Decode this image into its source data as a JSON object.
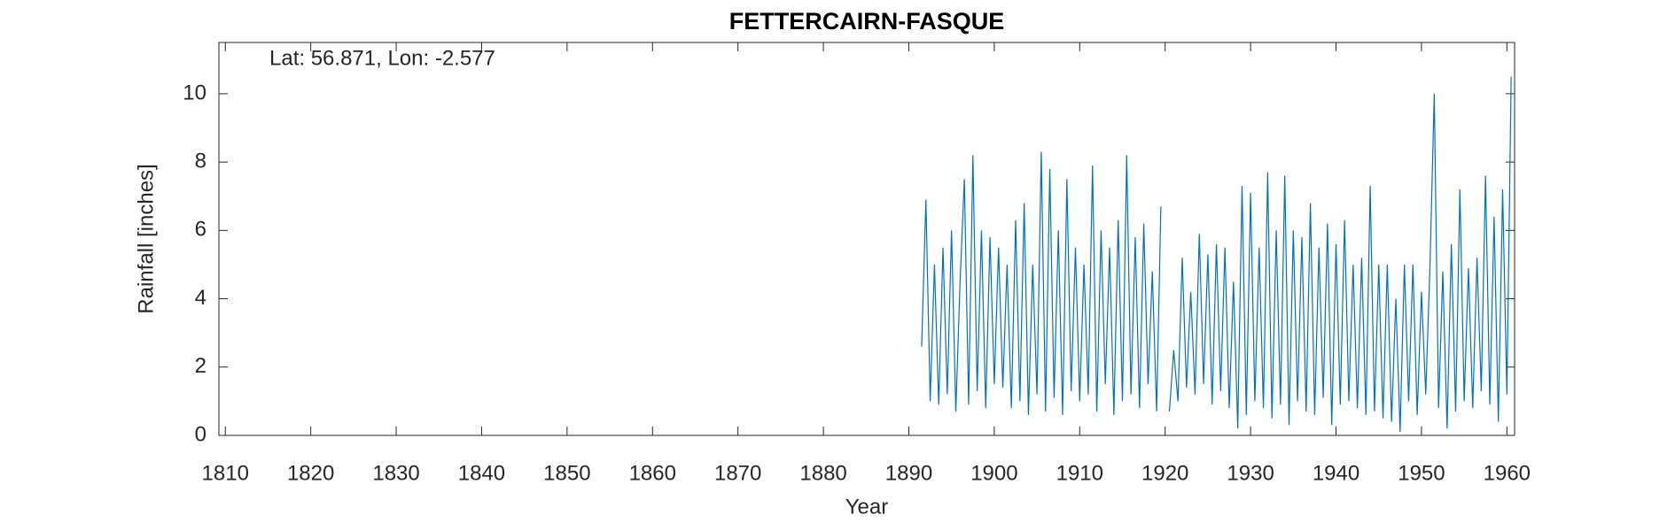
{
  "chart_data": {
    "type": "line",
    "title": "FETTERCAIRN-FASQUE",
    "annotation": "Lat: 56.871, Lon: -2.577",
    "xlabel": "Year",
    "ylabel": "Rainfall [inches]",
    "x": [
      1891.5,
      1892,
      1892.5,
      1893,
      1893.5,
      1894,
      1894.5,
      1895,
      1895.5,
      1896,
      1896.5,
      1897,
      1897.5,
      1898,
      1898.5,
      1899,
      1899.5,
      1900,
      1900.5,
      1901,
      1901.5,
      1902,
      1902.5,
      1903,
      1903.5,
      1904,
      1904.5,
      1905,
      1905.5,
      1906,
      1906.5,
      1907,
      1907.5,
      1908,
      1908.5,
      1909,
      1909.5,
      1910,
      1910.5,
      1911,
      1911.5,
      1912,
      1912.5,
      1913,
      1913.5,
      1914,
      1914.5,
      1915,
      1915.5,
      1916,
      1916.5,
      1917,
      1917.5,
      1918,
      1918.5,
      1919,
      1919.5,
      1920,
      1920.5,
      1921,
      1921.5,
      1922,
      1922.5,
      1923,
      1923.5,
      1924,
      1924.5,
      1925,
      1925.5,
      1926,
      1926.5,
      1927,
      1927.5,
      1928,
      1928.5,
      1929,
      1929.5,
      1930,
      1930.5,
      1931,
      1931.5,
      1932,
      1932.5,
      1933,
      1933.5,
      1934,
      1934.5,
      1935,
      1935.5,
      1936,
      1936.5,
      1937,
      1937.5,
      1938,
      1938.5,
      1939,
      1939.5,
      1940,
      1940.5,
      1941,
      1941.5,
      1942,
      1942.5,
      1943,
      1943.5,
      1944,
      1944.5,
      1945,
      1945.5,
      1946,
      1946.5,
      1947,
      1947.5,
      1948,
      1948.5,
      1949,
      1949.5,
      1950,
      1950.5,
      1951,
      1951.5,
      1952,
      1952.5,
      1953,
      1953.5,
      1954,
      1954.5,
      1955,
      1955.5,
      1956,
      1956.5,
      1957,
      1957.5,
      1958,
      1958.5,
      1959,
      1959.5,
      1960,
      1960.5
    ],
    "series": [
      {
        "name": "Rainfall",
        "color": "#0072bd",
        "values": [
          2.6,
          6.9,
          1.0,
          5.0,
          0.9,
          5.5,
          1.2,
          6.0,
          0.7,
          4.5,
          7.5,
          0.9,
          8.2,
          1.3,
          6.0,
          0.8,
          5.8,
          1.5,
          5.5,
          1.4,
          5.0,
          0.8,
          6.3,
          1.0,
          6.8,
          0.6,
          5.0,
          1.2,
          8.3,
          0.7,
          7.8,
          1.1,
          6.0,
          0.6,
          7.5,
          1.3,
          5.5,
          1.0,
          5.0,
          1.2,
          7.9,
          0.7,
          6.0,
          1.5,
          5.5,
          0.6,
          6.3,
          1.0,
          8.2,
          1.2,
          5.8,
          0.8,
          6.2,
          1.5,
          4.8,
          0.7,
          6.7,
          null,
          0.7,
          2.5,
          1.0,
          5.2,
          1.4,
          4.2,
          1.2,
          5.9,
          1.5,
          5.3,
          0.9,
          5.6,
          1.3,
          5.5,
          0.8,
          4.5,
          0.2,
          7.3,
          0.6,
          7.1,
          1.0,
          5.5,
          0.8,
          7.7,
          0.5,
          6.0,
          0.9,
          7.6,
          0.3,
          6.0,
          1.0,
          5.8,
          0.7,
          6.8,
          0.6,
          5.5,
          1.1,
          6.2,
          0.3,
          5.6,
          0.9,
          6.3,
          1.0,
          5.0,
          0.8,
          5.2,
          0.6,
          7.3,
          0.7,
          5.0,
          0.5,
          5.0,
          0.4,
          4.0,
          0.1,
          5.0,
          1.0,
          5.0,
          0.6,
          4.2,
          1.2,
          5.0,
          10.0,
          0.8,
          4.8,
          0.2,
          5.6,
          0.7,
          7.2,
          1.0,
          4.9,
          0.8,
          5.2,
          1.3,
          7.6,
          0.9,
          6.4,
          0.4,
          7.2,
          1.2,
          10.5
        ]
      }
    ],
    "xlim": [
      1809.25,
      1960.9
    ],
    "xticks": [
      1810,
      1820,
      1830,
      1840,
      1850,
      1860,
      1870,
      1880,
      1890,
      1900,
      1910,
      1920,
      1930,
      1940,
      1950,
      1960
    ],
    "ylim": [
      0,
      11.5
    ],
    "yticks": [
      0,
      2,
      4,
      6,
      8,
      10
    ]
  }
}
